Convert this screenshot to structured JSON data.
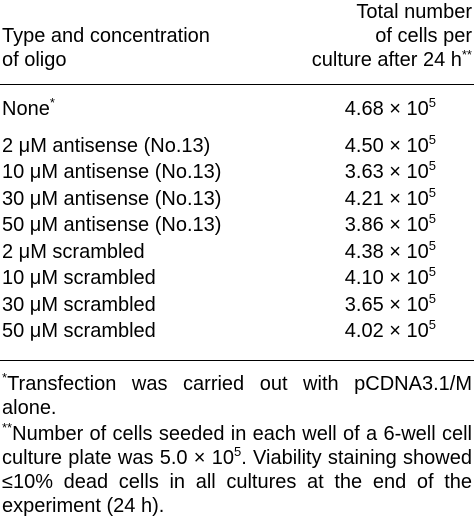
{
  "header": {
    "left_line1": "Type and concentration",
    "left_line2": "of oligo",
    "right_line1": "Total number",
    "right_line2": "of cells per",
    "right_line3": "culture after 24 h",
    "right_mark": "**"
  },
  "rows": [
    {
      "label": "None",
      "mark": "*",
      "mantissa": "4.68 × 10",
      "exp": "5"
    },
    {
      "label": "2  μM antisense (No.13)",
      "mark": "",
      "mantissa": "4.50 × 10",
      "exp": "5"
    },
    {
      "label": "10  μM antisense (No.13)",
      "mark": "",
      "mantissa": "3.63 × 10",
      "exp": "5"
    },
    {
      "label": "30  μM antisense (No.13)",
      "mark": "",
      "mantissa": "4.21 × 10",
      "exp": "5"
    },
    {
      "label": "50  μM antisense (No.13)",
      "mark": "",
      "mantissa": "3.86 × 10",
      "exp": "5"
    },
    {
      "label": "2  μM scrambled",
      "mark": "",
      "mantissa": "4.38 × 10",
      "exp": "5"
    },
    {
      "label": "10  μM scrambled",
      "mark": "",
      "mantissa": "4.10 × 10",
      "exp": "5"
    },
    {
      "label": "30  μM scrambled",
      "mark": "",
      "mantissa": "3.65 × 10",
      "exp": "5"
    },
    {
      "label": "50  μM scrambled",
      "mark": "",
      "mantissa": "4.02 × 10",
      "exp": "5"
    }
  ],
  "footnotes": {
    "note1_mark": "*",
    "note1_text": "Transfection was carried out with pCDNA3.1/M alone.",
    "note2_mark": "**",
    "note2_text_a": "Number of cells seeded in each well of a 6-well cell culture plate was 5.0 × 10",
    "note2_exp": "5",
    "note2_text_b": ". Viability staining showed ≤10% dead cells in all cultures at the end of the experiment (24 h)."
  }
}
